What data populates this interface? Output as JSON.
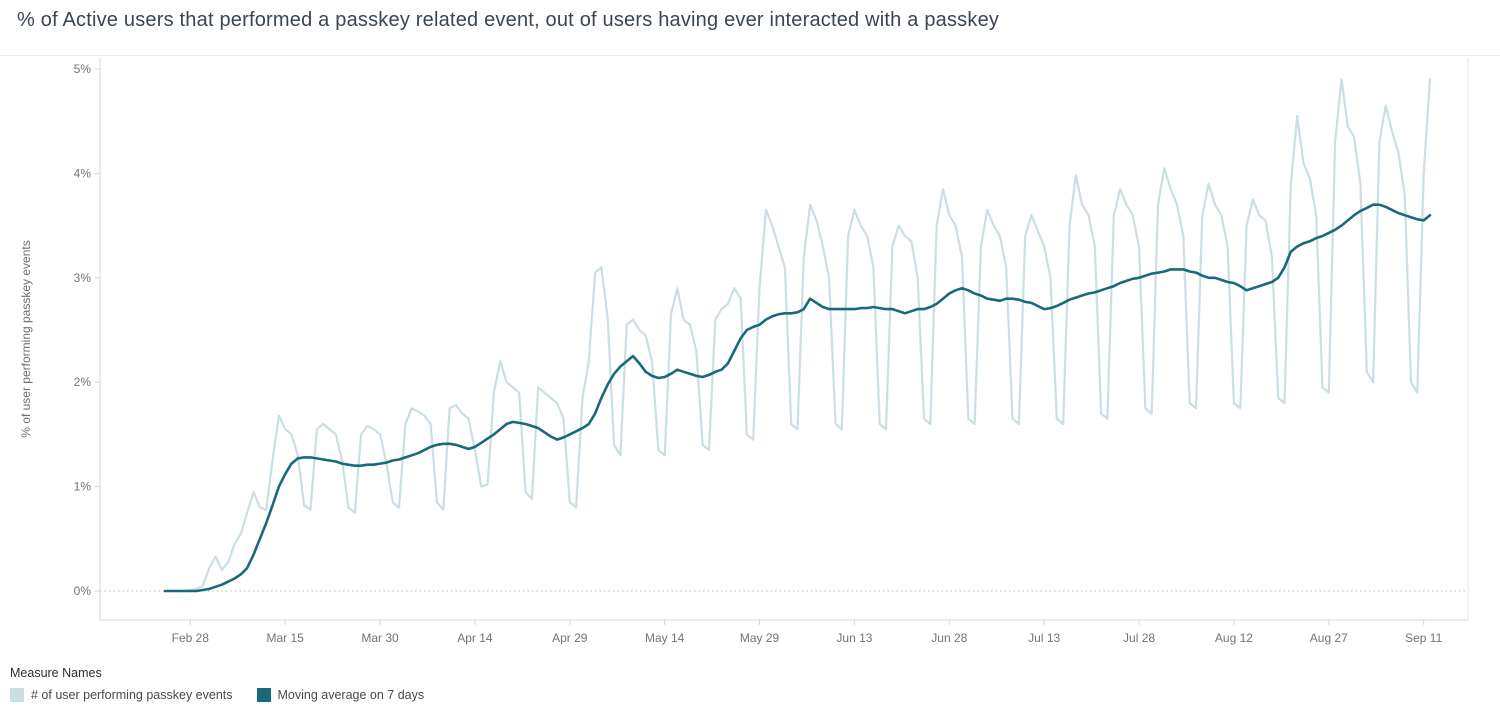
{
  "title": "% of Active users that performed a passkey related event, out of users having ever interacted with a passkey",
  "legend": {
    "title": "Measure Names"
  },
  "chart_data": {
    "type": "line",
    "title": "% of Active users that performed a passkey related event, out of users having ever interacted with a passkey",
    "xlabel": "",
    "ylabel": "% of user performing passkey events",
    "ylim": [
      0,
      5
    ],
    "grid": "zero-line-only",
    "legend_position": "bottom-left",
    "x_start_date": "Feb 24",
    "x_unit": "day",
    "y_ticks": [
      {
        "label": "0%",
        "value": 0
      },
      {
        "label": "1%",
        "value": 1
      },
      {
        "label": "2%",
        "value": 2
      },
      {
        "label": "3%",
        "value": 3
      },
      {
        "label": "4%",
        "value": 4
      },
      {
        "label": "5%",
        "value": 5
      }
    ],
    "x_ticks": [
      {
        "label": "Feb 28",
        "day": 4
      },
      {
        "label": "Mar 15",
        "day": 19
      },
      {
        "label": "Mar 30",
        "day": 34
      },
      {
        "label": "Apr 14",
        "day": 49
      },
      {
        "label": "Apr 29",
        "day": 64
      },
      {
        "label": "May 14",
        "day": 79
      },
      {
        "label": "May 29",
        "day": 94
      },
      {
        "label": "Jun 13",
        "day": 109
      },
      {
        "label": "Jun 28",
        "day": 124
      },
      {
        "label": "Jul 13",
        "day": 139
      },
      {
        "label": "Jul 28",
        "day": 154
      },
      {
        "label": "Aug 12",
        "day": 169
      },
      {
        "label": "Aug 27",
        "day": 184
      },
      {
        "label": "Sep 11",
        "day": 199
      }
    ],
    "series": [
      {
        "id": "daily",
        "name": "# of user performing passkey events",
        "color": "#cbdee4",
        "values": [
          0,
          0,
          0,
          0,
          0.01,
          0.02,
          0.05,
          0.22,
          0.33,
          0.2,
          0.28,
          0.45,
          0.55,
          0.75,
          0.95,
          0.8,
          0.78,
          1.25,
          1.68,
          1.55,
          1.5,
          1.3,
          0.82,
          0.78,
          1.55,
          1.6,
          1.55,
          1.5,
          1.25,
          0.8,
          0.75,
          1.5,
          1.58,
          1.55,
          1.5,
          1.22,
          0.85,
          0.8,
          1.6,
          1.75,
          1.72,
          1.68,
          1.6,
          0.85,
          0.78,
          1.75,
          1.78,
          1.7,
          1.65,
          1.35,
          1.0,
          1.02,
          1.9,
          2.2,
          2.0,
          1.95,
          1.9,
          0.95,
          0.88,
          1.95,
          1.9,
          1.85,
          1.8,
          1.65,
          0.85,
          0.8,
          1.85,
          2.2,
          3.05,
          3.1,
          2.6,
          1.4,
          1.3,
          2.55,
          2.6,
          2.5,
          2.45,
          2.2,
          1.35,
          1.3,
          2.65,
          2.9,
          2.6,
          2.55,
          2.3,
          1.4,
          1.35,
          2.6,
          2.7,
          2.75,
          2.9,
          2.8,
          1.5,
          1.45,
          2.9,
          3.65,
          3.5,
          3.3,
          3.1,
          1.6,
          1.55,
          3.2,
          3.7,
          3.55,
          3.3,
          3.0,
          1.6,
          1.55,
          3.4,
          3.65,
          3.5,
          3.4,
          3.1,
          1.6,
          1.55,
          3.3,
          3.5,
          3.4,
          3.35,
          3.0,
          1.65,
          1.6,
          3.5,
          3.85,
          3.6,
          3.5,
          3.2,
          1.65,
          1.6,
          3.3,
          3.65,
          3.5,
          3.4,
          3.1,
          1.65,
          1.6,
          3.4,
          3.6,
          3.45,
          3.3,
          3.0,
          1.65,
          1.6,
          3.5,
          3.98,
          3.7,
          3.6,
          3.3,
          1.7,
          1.65,
          3.6,
          3.85,
          3.7,
          3.6,
          3.3,
          1.75,
          1.7,
          3.7,
          4.05,
          3.85,
          3.7,
          3.4,
          1.8,
          1.75,
          3.6,
          3.9,
          3.7,
          3.6,
          3.3,
          1.8,
          1.75,
          3.5,
          3.75,
          3.6,
          3.55,
          3.2,
          1.85,
          1.8,
          3.9,
          4.55,
          4.1,
          3.95,
          3.6,
          1.95,
          1.9,
          4.3,
          4.9,
          4.45,
          4.35,
          3.9,
          2.1,
          2.0,
          4.3,
          4.65,
          4.4,
          4.2,
          3.8,
          2.0,
          1.9,
          4.0,
          4.9
        ]
      },
      {
        "id": "moving-average",
        "name": "Moving average on 7 days",
        "color": "#17697c",
        "values": [
          0,
          0,
          0,
          0,
          0,
          0,
          0.01,
          0.02,
          0.04,
          0.06,
          0.09,
          0.12,
          0.16,
          0.22,
          0.35,
          0.5,
          0.65,
          0.82,
          1.0,
          1.12,
          1.22,
          1.27,
          1.28,
          1.28,
          1.27,
          1.26,
          1.25,
          1.24,
          1.22,
          1.21,
          1.2,
          1.2,
          1.21,
          1.21,
          1.22,
          1.23,
          1.25,
          1.26,
          1.28,
          1.3,
          1.32,
          1.35,
          1.38,
          1.4,
          1.41,
          1.41,
          1.4,
          1.38,
          1.36,
          1.38,
          1.42,
          1.46,
          1.5,
          1.55,
          1.6,
          1.62,
          1.61,
          1.6,
          1.58,
          1.56,
          1.52,
          1.48,
          1.45,
          1.47,
          1.5,
          1.53,
          1.56,
          1.6,
          1.7,
          1.85,
          1.98,
          2.08,
          2.15,
          2.2,
          2.25,
          2.18,
          2.1,
          2.06,
          2.04,
          2.05,
          2.08,
          2.12,
          2.1,
          2.08,
          2.06,
          2.05,
          2.07,
          2.1,
          2.12,
          2.18,
          2.3,
          2.42,
          2.5,
          2.53,
          2.55,
          2.6,
          2.63,
          2.65,
          2.66,
          2.66,
          2.67,
          2.7,
          2.8,
          2.76,
          2.72,
          2.7,
          2.7,
          2.7,
          2.7,
          2.7,
          2.71,
          2.71,
          2.72,
          2.71,
          2.7,
          2.7,
          2.68,
          2.66,
          2.68,
          2.7,
          2.7,
          2.72,
          2.75,
          2.8,
          2.85,
          2.88,
          2.9,
          2.88,
          2.85,
          2.83,
          2.8,
          2.79,
          2.78,
          2.8,
          2.8,
          2.79,
          2.77,
          2.76,
          2.73,
          2.7,
          2.71,
          2.73,
          2.76,
          2.79,
          2.81,
          2.83,
          2.85,
          2.86,
          2.88,
          2.9,
          2.92,
          2.95,
          2.97,
          2.99,
          3.0,
          3.02,
          3.04,
          3.05,
          3.06,
          3.08,
          3.08,
          3.08,
          3.06,
          3.05,
          3.02,
          3.0,
          3.0,
          2.98,
          2.96,
          2.95,
          2.92,
          2.88,
          2.9,
          2.92,
          2.94,
          2.96,
          3.0,
          3.1,
          3.25,
          3.3,
          3.33,
          3.35,
          3.38,
          3.4,
          3.43,
          3.46,
          3.5,
          3.55,
          3.6,
          3.64,
          3.67,
          3.7,
          3.7,
          3.68,
          3.65,
          3.62,
          3.6,
          3.58,
          3.56,
          3.55,
          3.6
        ]
      }
    ]
  }
}
